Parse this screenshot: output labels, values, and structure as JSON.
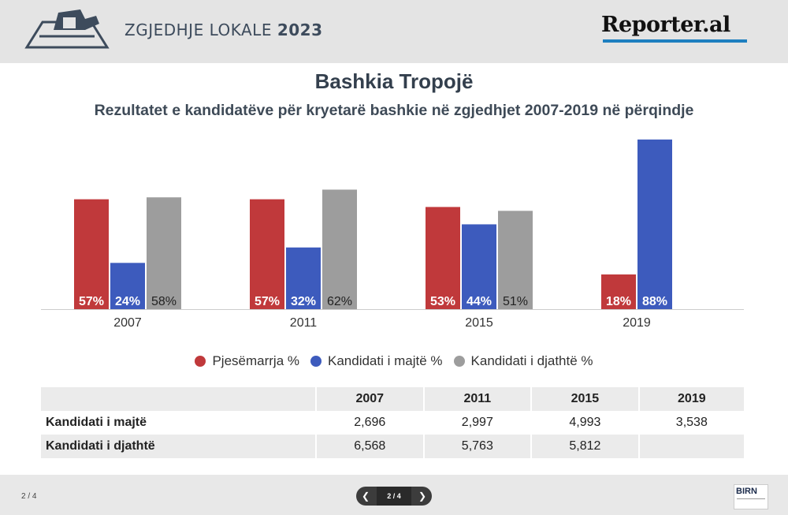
{
  "header": {
    "title_light": "ZGJEDHJE LOKALE",
    "title_bold": "2023",
    "brand": "Reporter.al"
  },
  "slide": {
    "title": "Bashkia Tropojë",
    "subtitle": "Rezultatet e kandidatëve për kryetarë bashkie në zgjedhjet 2007-2019 në përqindje"
  },
  "chart_data": {
    "type": "bar",
    "categories": [
      "2007",
      "2011",
      "2015",
      "2019"
    ],
    "series": [
      {
        "name": "Pjesëmarrja %",
        "color": "#c0393b",
        "values": [
          57,
          57,
          53,
          18
        ],
        "labels": [
          "57%",
          "57%",
          "53%",
          "18%"
        ]
      },
      {
        "name": "Kandidati i majtë %",
        "color": "#3d5bbd",
        "values": [
          24,
          32,
          44,
          88
        ],
        "labels": [
          "24%",
          "32%",
          "44%",
          "88%"
        ]
      },
      {
        "name": "Kandidati i djathtë %",
        "color": "#9d9d9d",
        "values": [
          58,
          62,
          51,
          null
        ],
        "labels": [
          "58%",
          "62%",
          "51%",
          ""
        ]
      }
    ],
    "ylim": [
      0,
      90
    ],
    "grid": false,
    "legend_position": "bottom-center"
  },
  "table": {
    "headers": [
      "",
      "2007",
      "2011",
      "2015",
      "2019"
    ],
    "rows": [
      {
        "label": "Kandidati i majtë",
        "values": [
          "2,696",
          "2,997",
          "4,993",
          "3,538"
        ]
      },
      {
        "label": "Kandidati i djathtë",
        "values": [
          "6,568",
          "5,763",
          "5,812",
          ""
        ]
      }
    ]
  },
  "footer": {
    "page_label": "2 / 4",
    "pager_label": "2 / 4",
    "prev_icon": "chevron-left-icon",
    "next_icon": "chevron-right-icon",
    "logo_text": "BIRN"
  }
}
